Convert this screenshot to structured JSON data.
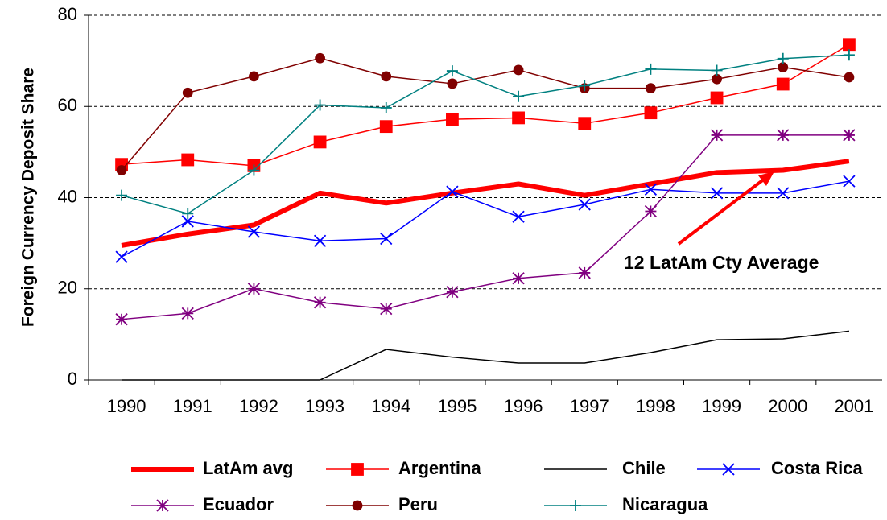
{
  "chart_data": {
    "type": "line",
    "y_label": "Foreign Currency Deposit Share",
    "categories": [
      "1990",
      "1991",
      "1992",
      "1993",
      "1994",
      "1995",
      "1996",
      "1997",
      "1998",
      "1999",
      "2000",
      "2001"
    ],
    "series": [
      {
        "name": "LatAm avg",
        "color": "#ff0000",
        "line_width": 6,
        "marker": "none",
        "values": [
          29.5,
          32,
          34,
          41,
          38.8,
          41,
          43,
          40.5,
          43,
          45.5,
          46,
          48
        ]
      },
      {
        "name": "Argentina",
        "color": "#ff0000",
        "line_width": 1.5,
        "marker": "square",
        "values": [
          47.3,
          48.3,
          47,
          52.2,
          55.6,
          57.2,
          57.5,
          56.3,
          58.6,
          61.9,
          64.9,
          73.6
        ]
      },
      {
        "name": "Chile",
        "color": "#000000",
        "line_width": 1.5,
        "marker": "none",
        "values": [
          0,
          0,
          0,
          0,
          6.7,
          5,
          3.7,
          3.7,
          6,
          8.8,
          9,
          10.7
        ]
      },
      {
        "name": "Costa Rica",
        "color": "#0000ff",
        "line_width": 1.5,
        "marker": "x",
        "values": [
          27,
          34.8,
          32.5,
          30.5,
          31,
          41.3,
          35.8,
          38.5,
          41.8,
          41,
          41,
          43.6
        ]
      },
      {
        "name": "Ecuador",
        "color": "#800080",
        "line_width": 1.5,
        "marker": "asterisk",
        "values": [
          13.3,
          14.6,
          20,
          17,
          15.6,
          19.3,
          22.3,
          23.5,
          37,
          53.7,
          53.7,
          53.7
        ]
      },
      {
        "name": "Peru",
        "color": "#800000",
        "line_width": 1.5,
        "marker": "circle",
        "values": [
          46,
          63,
          66.6,
          70.6,
          66.6,
          65,
          68,
          64,
          64,
          66,
          68.6,
          66.4
        ]
      },
      {
        "name": "Nicaragua",
        "color": "#008080",
        "line_width": 1.5,
        "marker": "plus",
        "values": [
          40.5,
          36.5,
          46,
          60.3,
          59.7,
          67.8,
          62.2,
          64.6,
          68.2,
          67.9,
          70.5,
          71.3
        ]
      }
    ],
    "ylim": [
      0,
      80
    ],
    "yticks": [
      0,
      20,
      40,
      60,
      80
    ],
    "grid": true,
    "legend": "bottom",
    "annotations": [
      {
        "text": "12 LatAm Cty Average",
        "color": "#ff0000"
      }
    ]
  }
}
